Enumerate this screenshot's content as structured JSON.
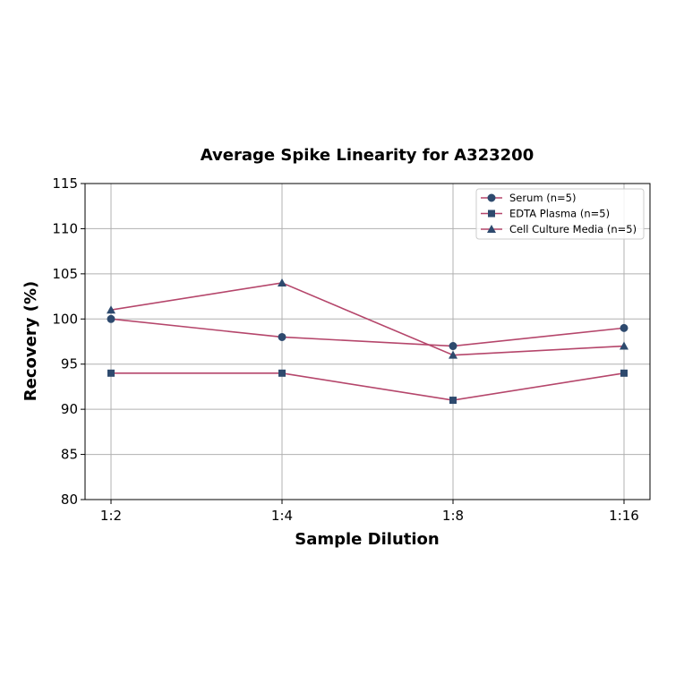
{
  "chart_data": {
    "type": "line",
    "title": "Average Spike Linearity for A323200",
    "xlabel": "Sample Dilution",
    "ylabel": "Recovery (%)",
    "categories": [
      "1:2",
      "1:4",
      "1:8",
      "1:16"
    ],
    "ylim": [
      80,
      115
    ],
    "yticks": [
      80,
      85,
      90,
      95,
      100,
      105,
      110,
      115
    ],
    "grid": true,
    "legend_position": "upper right",
    "line_color": "#b5466b",
    "marker_color": "#2e4a6e",
    "series": [
      {
        "name": "Serum (n=5)",
        "marker": "circle",
        "values": [
          100,
          98,
          97,
          99
        ]
      },
      {
        "name": "EDTA Plasma (n=5)",
        "marker": "square",
        "values": [
          94,
          94,
          91,
          94
        ]
      },
      {
        "name": "Cell Culture Media (n=5)",
        "marker": "triangle",
        "values": [
          101,
          104,
          96,
          97
        ]
      }
    ]
  }
}
